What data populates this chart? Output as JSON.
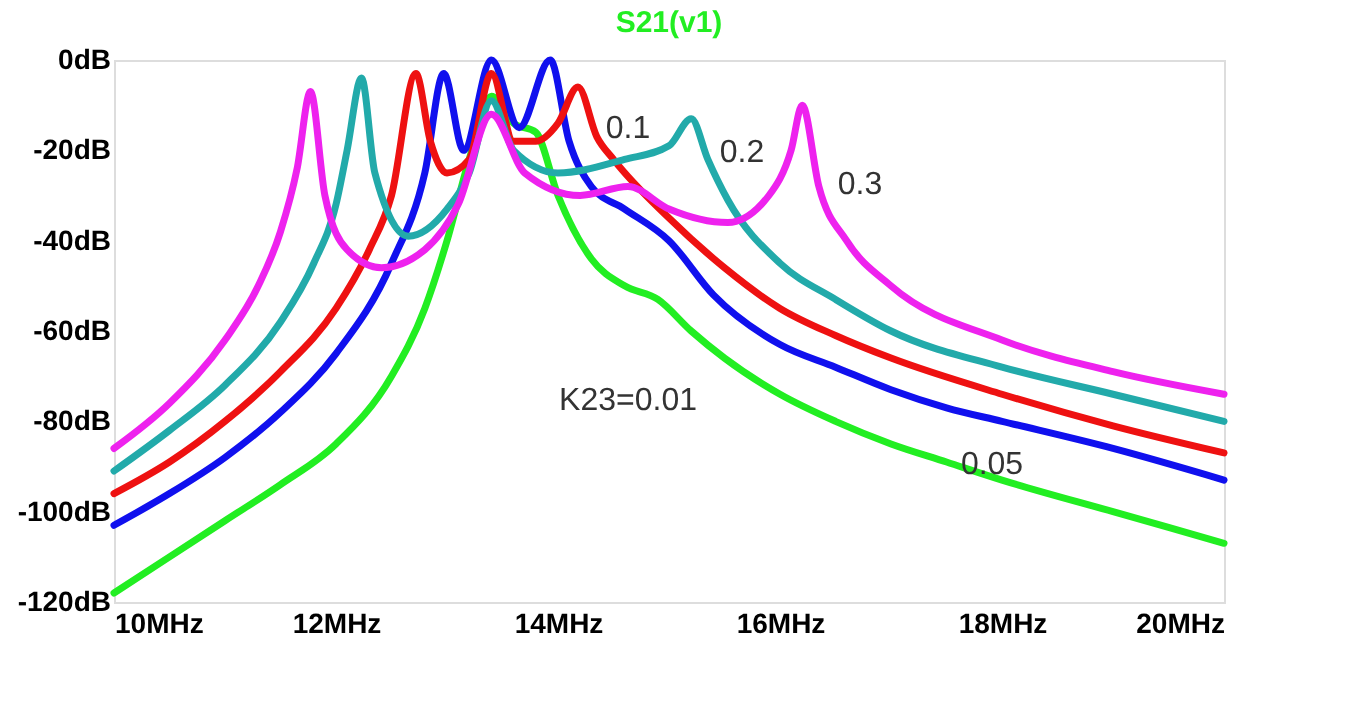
{
  "chart_data": {
    "type": "line",
    "title": "S21(v1)",
    "xlim": [
      10,
      20
    ],
    "ylim": [
      -120,
      0
    ],
    "xticks": [
      {
        "value": 10,
        "label": "10MHz"
      },
      {
        "value": 12,
        "label": "12MHz"
      },
      {
        "value": 14,
        "label": "14MHz"
      },
      {
        "value": 16,
        "label": "16MHz"
      },
      {
        "value": 18,
        "label": "18MHz"
      },
      {
        "value": 20,
        "label": "20MHz"
      }
    ],
    "yticks": [
      {
        "value": 0,
        "label": "0dB"
      },
      {
        "value": -20,
        "label": "-20dB"
      },
      {
        "value": -40,
        "label": "-40dB"
      },
      {
        "value": -60,
        "label": "-60dB"
      },
      {
        "value": -80,
        "label": "-80dB"
      },
      {
        "value": -100,
        "label": "-100dB"
      },
      {
        "value": -120,
        "label": "-120dB"
      }
    ],
    "grid": false,
    "marker": "none",
    "line_style": "solid",
    "series": [
      {
        "color": "#22ee22",
        "x": [
          10,
          10.5,
          11,
          11.5,
          12,
          12.5,
          12.8,
          13.0,
          13.2,
          13.4,
          13.6,
          13.8,
          14.0,
          14.3,
          14.6,
          14.9,
          15.2,
          15.5,
          16,
          16.5,
          17,
          17.5,
          18,
          19,
          20
        ],
        "values": [
          -118,
          -110,
          -102,
          -94,
          -85,
          -70,
          -55,
          -40,
          -22,
          -8,
          -14,
          -16,
          -30,
          -44,
          -50,
          -53,
          -60,
          -66,
          -74,
          -80,
          -85,
          -89,
          -93,
          -100,
          -107
        ]
      },
      {
        "color": "#1010ee",
        "x": [
          10,
          10.5,
          11,
          11.5,
          12,
          12.5,
          12.8,
          12.97,
          13.15,
          13.4,
          13.65,
          13.93,
          14.1,
          14.3,
          14.6,
          15,
          15.4,
          16,
          16.5,
          17,
          17.5,
          18,
          19,
          20
        ],
        "values": [
          -103,
          -96,
          -88,
          -78,
          -65,
          -45,
          -25,
          -3,
          -20,
          0,
          -15,
          0,
          -18,
          -28,
          -33,
          -40,
          -52,
          -63,
          -68,
          -73,
          -77,
          -80,
          -86,
          -93
        ]
      },
      {
        "color": "#ee1111",
        "x": [
          10,
          10.5,
          11,
          11.5,
          12,
          12.3,
          12.5,
          12.72,
          12.85,
          13.0,
          13.2,
          13.4,
          13.6,
          13.8,
          14.0,
          14.18,
          14.35,
          14.5,
          15,
          15.5,
          16,
          16.5,
          17,
          18,
          19,
          20
        ],
        "values": [
          -96,
          -89,
          -80,
          -69,
          -55,
          -42,
          -30,
          -3,
          -18,
          -25,
          -22,
          -3,
          -18,
          -18,
          -14,
          -6,
          -17,
          -22,
          -35,
          -46,
          -55,
          -61,
          -66,
          -74,
          -81,
          -87
        ]
      },
      {
        "color": "#22aaaa",
        "x": [
          10,
          10.5,
          11,
          11.5,
          11.8,
          12.0,
          12.1,
          12.23,
          12.35,
          12.65,
          13.0,
          13.2,
          13.4,
          13.6,
          14.0,
          14.6,
          15.0,
          15.2,
          15.35,
          15.53,
          16,
          16.5,
          17,
          18,
          19,
          20
        ],
        "values": [
          -91,
          -82,
          -72,
          -58,
          -45,
          -32,
          -20,
          -4,
          -25,
          -39,
          -33,
          -25,
          -9,
          -20,
          -25,
          -22,
          -19,
          -13,
          -22,
          -31,
          -45,
          -53,
          -60,
          -68,
          -74,
          -80
        ]
      },
      {
        "color": "#ee22ee",
        "x": [
          10,
          10.5,
          11,
          11.3,
          11.5,
          11.65,
          11.77,
          11.9,
          12.1,
          12.41,
          12.8,
          13.1,
          13.4,
          13.7,
          14.2,
          14.63,
          15.0,
          15.53,
          15.9,
          16.1,
          16.2,
          16.35,
          16.6,
          17,
          18,
          19,
          20
        ],
        "values": [
          -86,
          -76,
          -62,
          -50,
          -38,
          -24,
          -7,
          -30,
          -42,
          -46,
          -42,
          -32,
          -12,
          -25,
          -30,
          -28,
          -33,
          -36,
          -30,
          -20,
          -10,
          -28,
          -40,
          -50,
          -62,
          -69,
          -74
        ]
      }
    ],
    "annotations": [
      "K23=0.01",
      "0.05",
      "0.1",
      "0.2",
      "0.3"
    ]
  }
}
